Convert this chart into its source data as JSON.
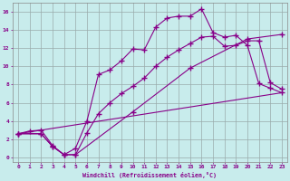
{
  "xlabel": "Windchill (Refroidissement éolien,°C)",
  "background_color": "#c8ecec",
  "line_color": "#880088",
  "xlim": [
    -0.5,
    23.5
  ],
  "ylim": [
    -0.5,
    17.0
  ],
  "xticks": [
    0,
    1,
    2,
    3,
    4,
    5,
    6,
    7,
    8,
    9,
    10,
    11,
    12,
    13,
    14,
    15,
    16,
    17,
    18,
    19,
    20,
    21,
    22,
    23
  ],
  "yticks": [
    0,
    2,
    4,
    6,
    8,
    10,
    12,
    14,
    16
  ],
  "grid_color": "#99aaaa",
  "line1_x": [
    0,
    1,
    2,
    3,
    4,
    5,
    6,
    7,
    8,
    9,
    10,
    11,
    12,
    13,
    14,
    15,
    16,
    17,
    18,
    19,
    20,
    21,
    22,
    23
  ],
  "line1_y": [
    2.6,
    2.9,
    3.0,
    1.3,
    0.3,
    1.0,
    4.0,
    9.1,
    9.6,
    10.6,
    11.9,
    11.8,
    14.3,
    15.3,
    15.5,
    15.5,
    16.3,
    13.7,
    13.2,
    13.4,
    12.3,
    8.1,
    7.6,
    7.1
  ],
  "line2_x": [
    0,
    2,
    3,
    4,
    5,
    6,
    7,
    8,
    9,
    10,
    11,
    12,
    13,
    14,
    15,
    16,
    17,
    18,
    19,
    20,
    21,
    22,
    23
  ],
  "line2_y": [
    2.6,
    2.6,
    1.2,
    0.3,
    0.3,
    2.7,
    4.8,
    6.0,
    7.0,
    7.8,
    8.7,
    10.0,
    11.0,
    11.8,
    12.5,
    13.2,
    13.3,
    12.2,
    12.3,
    12.8,
    12.8,
    8.2,
    7.5
  ],
  "line3_x": [
    0,
    2,
    3,
    4,
    5,
    10,
    15,
    20,
    23
  ],
  "line3_y": [
    2.6,
    2.6,
    1.2,
    0.3,
    0.3,
    5.0,
    9.8,
    13.0,
    13.5
  ],
  "line4_x": [
    0,
    23
  ],
  "line4_y": [
    2.6,
    7.1
  ]
}
